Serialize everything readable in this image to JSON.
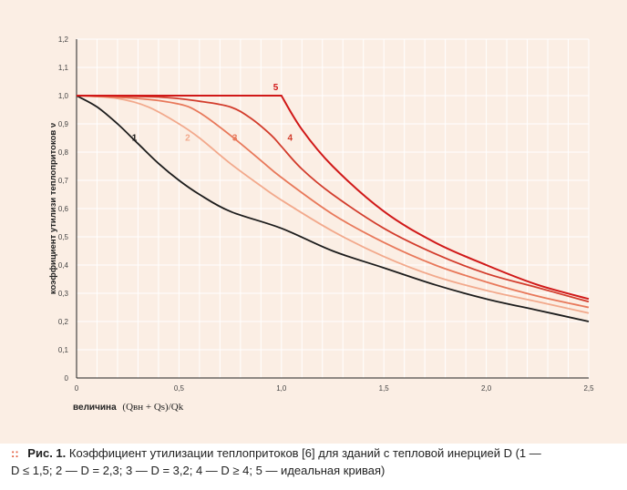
{
  "caption": {
    "marker": "::",
    "label": "Рис. 1.",
    "line1": "Коэффициент утилизации теплопритоков [6] для зданий с тепловой инерцией D (1 —",
    "line2": "D ≤ 1,5; 2 — D = 2,3; 3 — D = 3,2; 4 — D ≥ 4; 5 — идеальная кривая)"
  },
  "chart_data": {
    "type": "line",
    "ylabel": "коэффициент утилизи теплопритоков ν",
    "xlabel_bold": "величина",
    "xlabel_formula": "(Qвн + Qs)/Qk",
    "xlim": [
      0,
      2.5
    ],
    "ylim": [
      0,
      1.2
    ],
    "x_ticks": [
      "0",
      "0,5",
      "1,0",
      "1,5",
      "2,0",
      "2,5"
    ],
    "y_ticks": [
      "0",
      "0,1",
      "0,2",
      "0,3",
      "0,4",
      "0,5",
      "0,6",
      "0,7",
      "0,8",
      "0,9",
      "1,0",
      "1,1",
      "1,2"
    ],
    "grid": true,
    "series": [
      {
        "name": "1",
        "color": "#1c1c1c",
        "x": [
          0,
          0.1,
          0.2,
          0.3,
          0.4,
          0.5,
          0.6,
          0.75,
          1.0,
          1.25,
          1.5,
          1.75,
          2.0,
          2.25,
          2.5
        ],
        "y": [
          1.0,
          0.96,
          0.9,
          0.83,
          0.76,
          0.7,
          0.65,
          0.59,
          0.53,
          0.45,
          0.39,
          0.33,
          0.28,
          0.24,
          0.2
        ]
      },
      {
        "name": "2",
        "color": "#f2a98c",
        "x": [
          0,
          0.2,
          0.35,
          0.5,
          0.6,
          0.75,
          0.9,
          1.0,
          1.25,
          1.5,
          1.75,
          2.0,
          2.25,
          2.5
        ],
        "y": [
          1.0,
          0.99,
          0.96,
          0.9,
          0.85,
          0.76,
          0.68,
          0.63,
          0.52,
          0.43,
          0.36,
          0.31,
          0.27,
          0.23
        ]
      },
      {
        "name": "3",
        "color": "#e8785a",
        "x": [
          0,
          0.3,
          0.5,
          0.6,
          0.75,
          0.9,
          1.0,
          1.25,
          1.5,
          1.75,
          2.0,
          2.25,
          2.5
        ],
        "y": [
          1.0,
          0.99,
          0.97,
          0.94,
          0.86,
          0.77,
          0.71,
          0.58,
          0.48,
          0.4,
          0.34,
          0.29,
          0.25
        ]
      },
      {
        "name": "4",
        "color": "#d23c2c",
        "x": [
          0,
          0.4,
          0.6,
          0.75,
          0.85,
          0.95,
          1.0,
          1.1,
          1.25,
          1.5,
          1.75,
          2.0,
          2.25,
          2.5
        ],
        "y": [
          1.0,
          0.995,
          0.98,
          0.96,
          0.92,
          0.86,
          0.82,
          0.74,
          0.65,
          0.53,
          0.44,
          0.37,
          0.32,
          0.27
        ]
      },
      {
        "name": "5",
        "color": "#d01818",
        "x": [
          0,
          1.0,
          1.1,
          1.25,
          1.5,
          1.75,
          2.0,
          2.25,
          2.5
        ],
        "y": [
          1.0,
          1.0,
          0.88,
          0.75,
          0.59,
          0.48,
          0.4,
          0.33,
          0.28
        ]
      }
    ],
    "label_positions": [
      {
        "series": "1",
        "x": 0.27,
        "y": 0.84
      },
      {
        "series": "2",
        "x": 0.53,
        "y": 0.84
      },
      {
        "series": "3",
        "x": 0.76,
        "y": 0.84
      },
      {
        "series": "4",
        "x": 1.03,
        "y": 0.84
      },
      {
        "series": "5",
        "x": 0.96,
        "y": 1.02
      }
    ]
  }
}
